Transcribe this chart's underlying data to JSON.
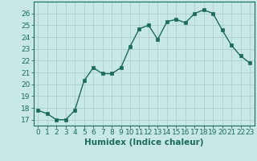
{
  "x": [
    0,
    1,
    2,
    3,
    4,
    5,
    6,
    7,
    8,
    9,
    10,
    11,
    12,
    13,
    14,
    15,
    16,
    17,
    18,
    19,
    20,
    21,
    22,
    23
  ],
  "y": [
    17.8,
    17.5,
    17.0,
    17.0,
    17.8,
    20.3,
    21.4,
    20.9,
    20.9,
    21.4,
    23.2,
    24.7,
    25.0,
    23.8,
    25.3,
    25.5,
    25.2,
    26.0,
    26.3,
    26.0,
    24.6,
    23.3,
    22.4,
    21.8
  ],
  "line_color": "#1a6b5a",
  "marker_color": "#1a6b5a",
  "bg_color": "#c8e8e8",
  "grid_color": "#aecece",
  "xlabel": "Humidex (Indice chaleur)",
  "ylim": [
    16.5,
    27.0
  ],
  "xlim": [
    -0.5,
    23.5
  ],
  "yticks": [
    17,
    18,
    19,
    20,
    21,
    22,
    23,
    24,
    25,
    26
  ],
  "xticks": [
    0,
    1,
    2,
    3,
    4,
    5,
    6,
    7,
    8,
    9,
    10,
    11,
    12,
    13,
    14,
    15,
    16,
    17,
    18,
    19,
    20,
    21,
    22,
    23
  ],
  "tick_label_fontsize": 6.5,
  "xlabel_fontsize": 7.5,
  "marker_size": 2.5,
  "line_width": 1.0
}
